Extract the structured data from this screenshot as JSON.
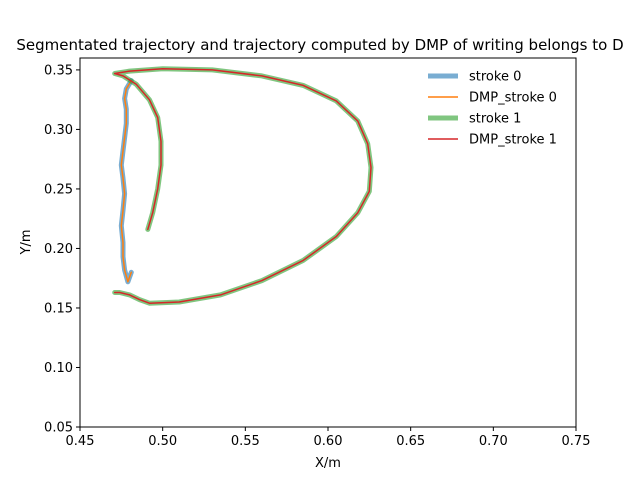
{
  "chart_data": {
    "type": "line",
    "title": "Segmentated trajectory and trajectory computed by DMP of writing belongs to D",
    "xlabel": "X/m",
    "ylabel": "Y/m",
    "xlim": [
      0.45,
      0.75
    ],
    "ylim": [
      0.05,
      0.36
    ],
    "xticks": [
      "0.45",
      "0.50",
      "0.55",
      "0.60",
      "0.65",
      "0.70",
      "0.75"
    ],
    "yticks": [
      "0.05",
      "0.10",
      "0.15",
      "0.20",
      "0.25",
      "0.30",
      "0.35"
    ],
    "grid": false,
    "legend_position": "top-right",
    "series": [
      {
        "name": "stroke 0",
        "color": "#1f77b4",
        "style": "thick-translucent",
        "x": [
          0.481,
          0.478,
          0.477,
          0.478,
          0.478,
          0.477,
          0.476,
          0.475,
          0.476,
          0.477,
          0.476,
          0.475,
          0.476,
          0.476,
          0.477,
          0.479,
          0.481
        ],
        "y": [
          0.341,
          0.334,
          0.326,
          0.317,
          0.305,
          0.293,
          0.282,
          0.27,
          0.259,
          0.246,
          0.232,
          0.219,
          0.205,
          0.193,
          0.182,
          0.172,
          0.18
        ]
      },
      {
        "name": "DMP_stroke 0",
        "color": "#ff7f0e",
        "style": "thin",
        "x": [
          0.481,
          0.478,
          0.477,
          0.478,
          0.478,
          0.477,
          0.476,
          0.475,
          0.476,
          0.477,
          0.476,
          0.475,
          0.476,
          0.476,
          0.477,
          0.479,
          0.481
        ],
        "y": [
          0.341,
          0.334,
          0.326,
          0.317,
          0.305,
          0.293,
          0.282,
          0.27,
          0.259,
          0.246,
          0.232,
          0.219,
          0.205,
          0.193,
          0.182,
          0.172,
          0.18
        ]
      },
      {
        "name": "stroke 1",
        "color": "#2ca02c",
        "style": "thick-translucent",
        "x": [
          0.491,
          0.494,
          0.497,
          0.499,
          0.499,
          0.497,
          0.492,
          0.484,
          0.476,
          0.471,
          0.48,
          0.5,
          0.53,
          0.56,
          0.585,
          0.605,
          0.618,
          0.624,
          0.626,
          0.625,
          0.618,
          0.605,
          0.585,
          0.56,
          0.535,
          0.51,
          0.492,
          0.486,
          0.48,
          0.474,
          0.471
        ],
        "y": [
          0.216,
          0.23,
          0.25,
          0.27,
          0.29,
          0.31,
          0.325,
          0.338,
          0.345,
          0.347,
          0.349,
          0.351,
          0.35,
          0.345,
          0.337,
          0.324,
          0.307,
          0.288,
          0.268,
          0.248,
          0.23,
          0.21,
          0.19,
          0.173,
          0.161,
          0.155,
          0.154,
          0.157,
          0.161,
          0.163,
          0.163
        ]
      },
      {
        "name": "DMP_stroke 1",
        "color": "#d62728",
        "style": "thin",
        "x": [
          0.491,
          0.494,
          0.497,
          0.499,
          0.499,
          0.497,
          0.492,
          0.484,
          0.476,
          0.471,
          0.48,
          0.5,
          0.53,
          0.56,
          0.585,
          0.605,
          0.618,
          0.624,
          0.626,
          0.625,
          0.618,
          0.605,
          0.585,
          0.56,
          0.535,
          0.51,
          0.492,
          0.486,
          0.48,
          0.474,
          0.471
        ],
        "y": [
          0.216,
          0.23,
          0.25,
          0.27,
          0.29,
          0.31,
          0.325,
          0.338,
          0.345,
          0.347,
          0.349,
          0.351,
          0.35,
          0.345,
          0.337,
          0.324,
          0.307,
          0.288,
          0.268,
          0.248,
          0.23,
          0.21,
          0.19,
          0.173,
          0.161,
          0.155,
          0.154,
          0.157,
          0.161,
          0.163,
          0.163
        ]
      }
    ]
  }
}
